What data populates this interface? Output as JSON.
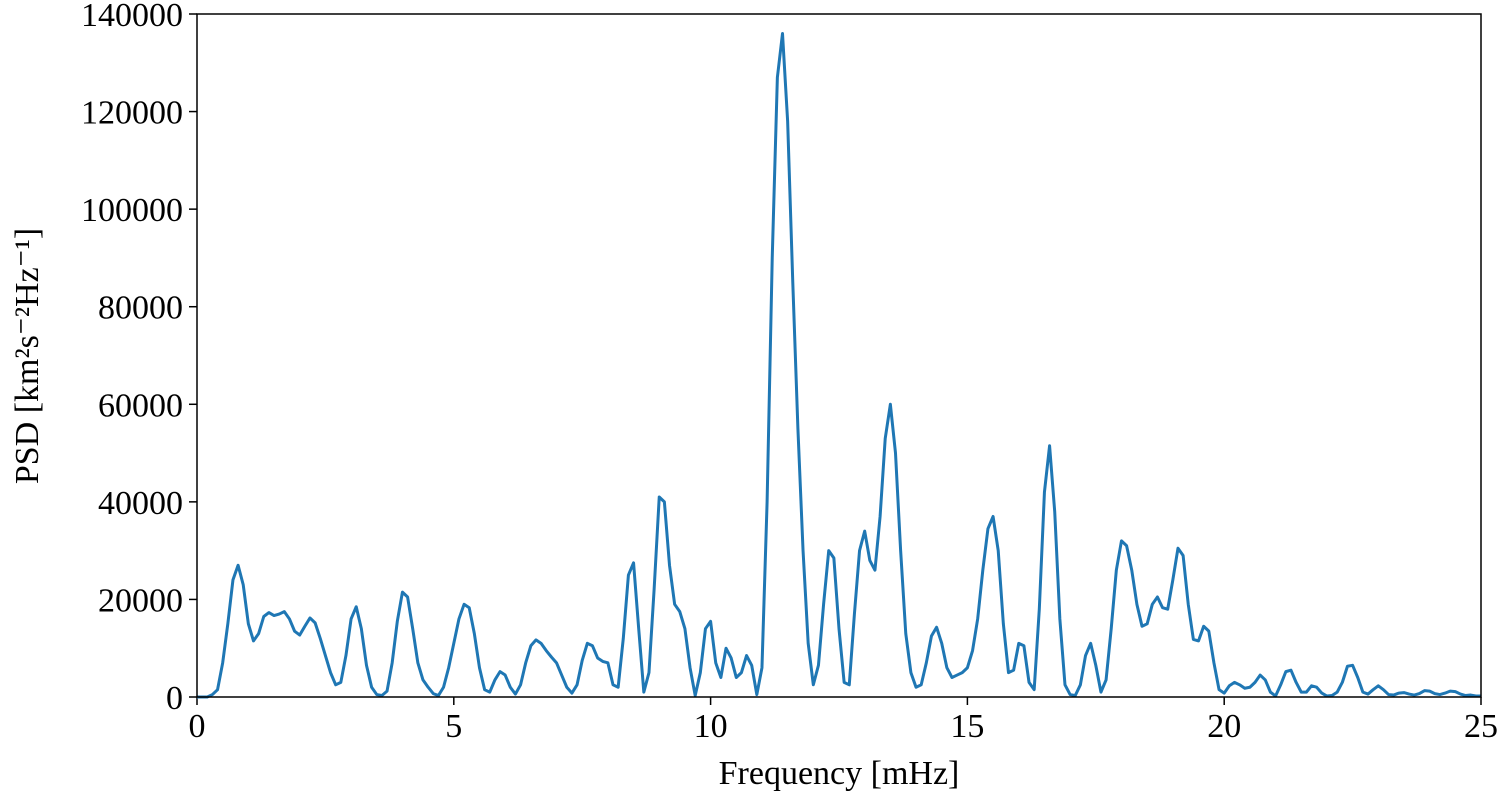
{
  "chart_data": {
    "type": "line",
    "xlabel": "Frequency [mHz]",
    "ylabel": "PSD [km²s⁻²Hz⁻¹]",
    "color": "#1f77b4",
    "xlim": [
      0,
      25
    ],
    "xticks": [
      0,
      5,
      10,
      15,
      20,
      25
    ],
    "ylim": [
      0,
      140000
    ],
    "yticks": [
      0,
      20000,
      40000,
      60000,
      80000,
      100000,
      120000,
      140000
    ],
    "x": [
      0,
      0.1,
      0.2,
      0.3,
      0.4,
      0.5,
      0.6,
      0.7,
      0.8,
      0.9,
      1,
      1.1,
      1.2,
      1.3,
      1.4,
      1.5,
      1.6,
      1.7,
      1.8,
      1.9,
      2,
      2.1,
      2.2,
      2.3,
      2.4,
      2.5,
      2.6,
      2.7,
      2.8,
      2.9,
      3,
      3.1,
      3.2,
      3.3,
      3.4,
      3.5,
      3.6,
      3.7,
      3.8,
      3.9,
      4,
      4.1,
      4.2,
      4.3,
      4.4,
      4.5,
      4.6,
      4.7,
      4.8,
      4.9,
      5,
      5.1,
      5.2,
      5.3,
      5.4,
      5.5,
      5.6,
      5.7,
      5.8,
      5.9,
      6,
      6.1,
      6.2,
      6.3,
      6.4,
      6.5,
      6.6,
      6.7,
      6.8,
      6.9,
      7,
      7.1,
      7.2,
      7.3,
      7.4,
      7.5,
      7.6,
      7.7,
      7.8,
      7.9,
      8,
      8.1,
      8.2,
      8.3,
      8.4,
      8.5,
      8.6,
      8.7,
      8.8,
      8.9,
      9,
      9.1,
      9.2,
      9.3,
      9.4,
      9.5,
      9.6,
      9.7,
      9.8,
      9.9,
      10,
      10.1,
      10.2,
      10.3,
      10.4,
      10.5,
      10.6,
      10.7,
      10.8,
      10.9,
      11,
      11.1,
      11.2,
      11.3,
      11.4,
      11.5,
      11.6,
      11.7,
      11.8,
      11.9,
      12,
      12.1,
      12.2,
      12.3,
      12.4,
      12.5,
      12.6,
      12.7,
      12.8,
      12.9,
      13,
      13.1,
      13.2,
      13.3,
      13.4,
      13.5,
      13.6,
      13.7,
      13.8,
      13.9,
      14,
      14.1,
      14.2,
      14.3,
      14.4,
      14.5,
      14.6,
      14.7,
      14.8,
      14.9,
      15,
      15.1,
      15.2,
      15.3,
      15.4,
      15.5,
      15.6,
      15.7,
      15.8,
      15.9,
      16,
      16.1,
      16.2,
      16.3,
      16.4,
      16.5,
      16.6,
      16.7,
      16.8,
      16.9,
      17,
      17.1,
      17.2,
      17.3,
      17.4,
      17.5,
      17.6,
      17.7,
      17.8,
      17.9,
      18,
      18.1,
      18.2,
      18.3,
      18.4,
      18.5,
      18.6,
      18.7,
      18.8,
      18.9,
      19,
      19.1,
      19.2,
      19.3,
      19.4,
      19.5,
      19.6,
      19.7,
      19.8,
      19.9,
      20,
      20.1,
      20.2,
      20.3,
      20.4,
      20.5,
      20.6,
      20.7,
      20.8,
      20.9,
      21,
      21.1,
      21.2,
      21.3,
      21.4,
      21.5,
      21.6,
      21.7,
      21.8,
      21.9,
      22,
      22.1,
      22.2,
      22.3,
      22.4,
      22.5,
      22.6,
      22.7,
      22.8,
      22.9,
      23,
      23.1,
      23.2,
      23.3,
      23.4,
      23.5,
      23.6,
      23.7,
      23.8,
      23.9,
      24,
      24.1,
      24.2,
      24.3,
      24.4,
      24.5,
      24.6,
      24.7,
      24.8,
      24.9,
      25
    ],
    "values": [
      0,
      0,
      0,
      500,
      1500,
      7000,
      15000,
      24000,
      27000,
      23000,
      15000,
      11500,
      13000,
      16500,
      17300,
      16700,
      17000,
      17500,
      16000,
      13500,
      12700,
      14500,
      16200,
      15200,
      12000,
      8500,
      5000,
      2500,
      3000,
      8500,
      16000,
      18500,
      14000,
      6500,
      2000,
      500,
      300,
      1200,
      7000,
      15500,
      21500,
      20500,
      14000,
      7000,
      3500,
      2000,
      700,
      300,
      2000,
      6000,
      11000,
      16000,
      19000,
      18300,
      13000,
      6000,
      1500,
      1000,
      3500,
      5200,
      4500,
      2000,
      600,
      2500,
      7000,
      10500,
      11700,
      11000,
      9500,
      8200,
      7000,
      4500,
      2000,
      800,
      2500,
      7500,
      11000,
      10500,
      8000,
      7300,
      7000,
      2500,
      2000,
      12000,
      25000,
      27500,
      14000,
      1000,
      5000,
      22000,
      41000,
      40000,
      27000,
      19000,
      17500,
      14000,
      6000,
      300,
      5000,
      14000,
      15500,
      7000,
      4000,
      10000,
      8000,
      4000,
      5000,
      8500,
      6500,
      500,
      6000,
      40000,
      90000,
      127000,
      136000,
      118000,
      85000,
      55000,
      30000,
      11000,
      2500,
      6500,
      19000,
      30000,
      28500,
      14000,
      3000,
      2500,
      17000,
      30000,
      34000,
      28000,
      26000,
      37000,
      53000,
      60000,
      50000,
      30000,
      13000,
      5000,
      2000,
      2500,
      7000,
      12500,
      14300,
      11000,
      6000,
      4000,
      4500,
      5000,
      6000,
      9500,
      16000,
      26000,
      34500,
      37000,
      30000,
      15000,
      5000,
      5500,
      11000,
      10500,
      3000,
      1500,
      18000,
      42000,
      51500,
      38000,
      16000,
      2500,
      500,
      300,
      2500,
      8500,
      11000,
      6500,
      1000,
      3500,
      14000,
      26000,
      32000,
      31000,
      26000,
      19000,
      14500,
      15000,
      19000,
      20500,
      18300,
      18000,
      24000,
      30500,
      29000,
      19000,
      11800,
      11500,
      14500,
      13500,
      7000,
      1500,
      800,
      2300,
      3000,
      2500,
      1800,
      2000,
      3000,
      4500,
      3500,
      1000,
      200,
      2500,
      5200,
      5500,
      3000,
      1000,
      1000,
      2300,
      2000,
      800,
      200,
      300,
      1000,
      3000,
      6300,
      6500,
      4000,
      1000,
      600,
      1500,
      2300,
      1500,
      500,
      400,
      800,
      900,
      600,
      400,
      700,
      1300,
      1200,
      700,
      500,
      800,
      1200,
      1100,
      600,
      300,
      400,
      200,
      200
    ]
  }
}
